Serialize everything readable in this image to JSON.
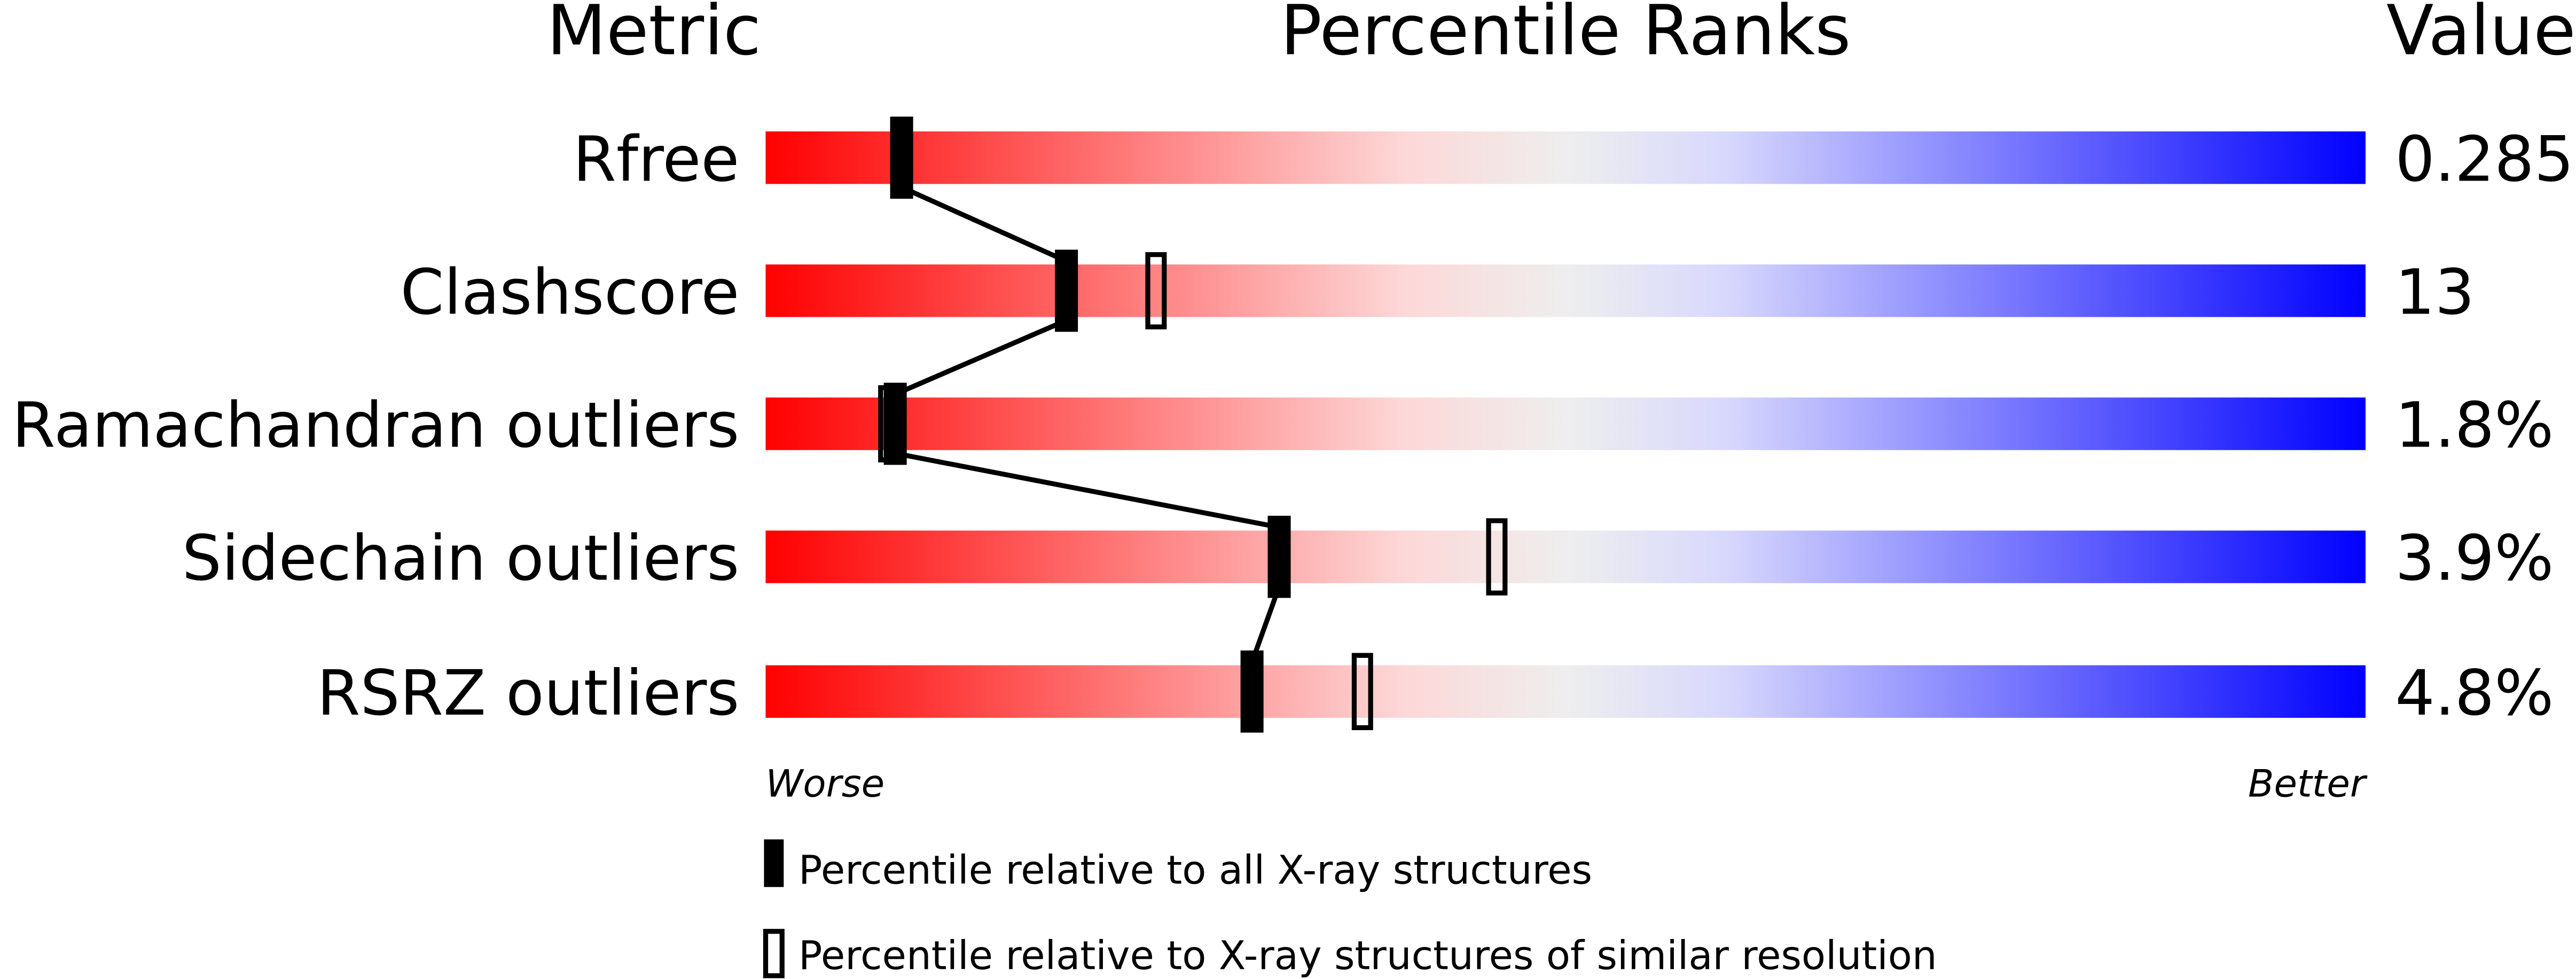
{
  "chart_data": {
    "type": "percentile-bar",
    "headers": {
      "metric": "Metric",
      "ranks": "Percentile Ranks",
      "value": "Value"
    },
    "xlim": [
      0,
      100
    ],
    "axis_labels": {
      "left": "Worse",
      "right": "Better"
    },
    "gradient_colors": [
      "#ff0000",
      "#fdd8d8",
      "#eeeeee",
      "#d8d8fd",
      "#0000ff"
    ],
    "metrics": [
      {
        "name": "Rfree",
        "value": "0.285",
        "percentile_all": 8.5,
        "percentile_similar": null
      },
      {
        "name": "Clashscore",
        "value": "13",
        "percentile_all": 18.8,
        "percentile_similar": 24.4
      },
      {
        "name": "Ramachandran outliers",
        "value": "1.8%",
        "percentile_all": 8.1,
        "percentile_similar": 7.7
      },
      {
        "name": "Sidechain outliers",
        "value": "3.9%",
        "percentile_all": 32.1,
        "percentile_similar": 45.7
      },
      {
        "name": "RSRZ outliers",
        "value": "4.8%",
        "percentile_all": 30.4,
        "percentile_similar": 37.3
      }
    ],
    "legend": [
      {
        "marker": "filled",
        "label": "Percentile relative to all X-ray structures"
      },
      {
        "marker": "open",
        "label": "Percentile relative to X-ray structures of similar resolution"
      }
    ],
    "legend_placement": "bottom"
  }
}
